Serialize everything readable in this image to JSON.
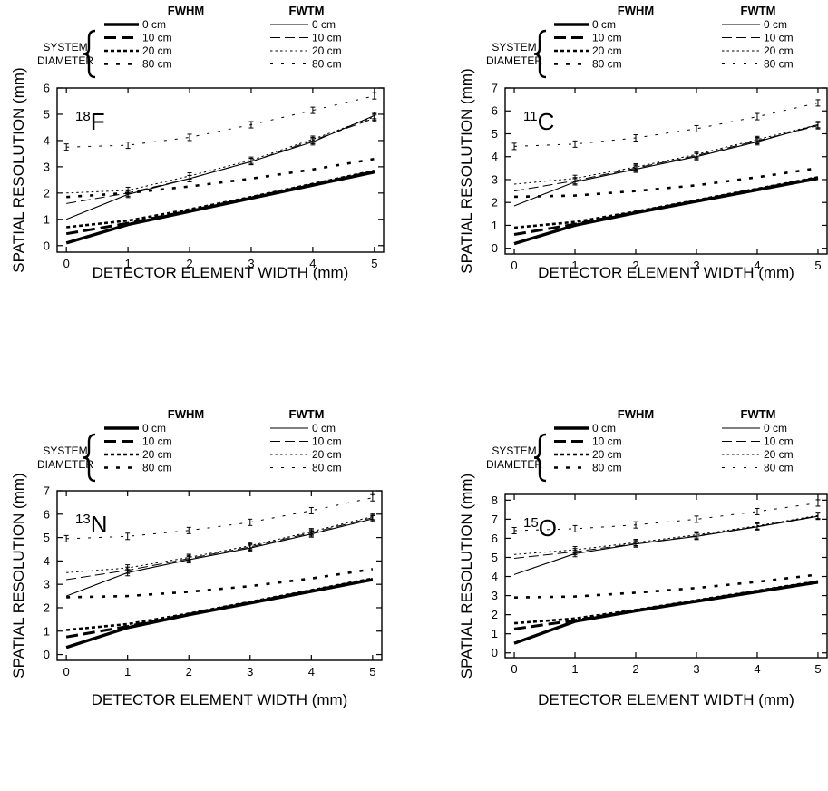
{
  "figure": {
    "legend": {
      "group_label_line1": "SYSTEM",
      "group_label_line2": "DIAMETER",
      "col_fwhm": "FWHM",
      "col_fwtm": "FWTM",
      "diameters": [
        "0 cm",
        "10 cm",
        "20 cm",
        "80 cm"
      ]
    }
  },
  "chart_data": [
    {
      "type": "line",
      "isotope_mass": "18",
      "isotope_symbol": "F",
      "xlabel": "DETECTOR ELEMENT WIDTH (mm)",
      "ylabel": "SPATIAL RESOLUTION (mm)",
      "x": [
        0,
        1,
        2,
        3,
        4,
        5
      ],
      "xticks": [
        0,
        1,
        2,
        3,
        4,
        5
      ],
      "yticks": [
        0,
        1,
        2,
        3,
        4,
        5,
        6
      ],
      "xlim": [
        -0.15,
        5.15
      ],
      "ylim": [
        -0.25,
        6.0
      ],
      "series": [
        {
          "name": "FWHM 0 cm",
          "values": [
            0.1,
            0.8,
            1.3,
            1.8,
            2.3,
            2.8
          ]
        },
        {
          "name": "FWHM 10 cm",
          "values": [
            0.45,
            0.85,
            1.32,
            1.82,
            2.32,
            2.82
          ]
        },
        {
          "name": "FWHM 20 cm",
          "values": [
            0.7,
            0.95,
            1.38,
            1.85,
            2.35,
            2.85
          ]
        },
        {
          "name": "FWHM 80 cm",
          "values": [
            1.85,
            2.0,
            2.25,
            2.55,
            2.9,
            3.3
          ]
        },
        {
          "name": "FWTM 0 cm",
          "values": [
            1.0,
            1.95,
            2.55,
            3.2,
            3.95,
            4.95
          ]
        },
        {
          "name": "FWTM 10 cm",
          "values": [
            1.6,
            2.0,
            2.55,
            3.2,
            4.0,
            4.85
          ]
        },
        {
          "name": "FWTM 20 cm",
          "values": [
            2.0,
            2.1,
            2.65,
            3.25,
            4.05,
            4.9
          ]
        },
        {
          "name": "FWTM 80 cm",
          "values": [
            3.75,
            3.82,
            4.12,
            4.6,
            5.15,
            5.7
          ]
        }
      ]
    },
    {
      "type": "line",
      "isotope_mass": "11",
      "isotope_symbol": "C",
      "xlabel": "DETECTOR ELEMENT WIDTH (mm)",
      "ylabel": "SPATIAL RESOLUTION (mm)",
      "x": [
        0,
        1,
        2,
        3,
        4,
        5
      ],
      "xticks": [
        0,
        1,
        2,
        3,
        4,
        5
      ],
      "yticks": [
        0,
        1,
        2,
        3,
        4,
        5,
        6,
        7
      ],
      "xlim": [
        -0.15,
        5.15
      ],
      "ylim": [
        -0.25,
        7.0
      ],
      "series": [
        {
          "name": "FWHM 0 cm",
          "values": [
            0.2,
            1.0,
            1.55,
            2.05,
            2.55,
            3.05
          ]
        },
        {
          "name": "FWHM 10 cm",
          "values": [
            0.6,
            1.05,
            1.57,
            2.07,
            2.57,
            3.07
          ]
        },
        {
          "name": "FWHM 20 cm",
          "values": [
            0.9,
            1.15,
            1.6,
            2.1,
            2.6,
            3.1
          ]
        },
        {
          "name": "FWHM 80 cm",
          "values": [
            2.25,
            2.3,
            2.5,
            2.75,
            3.1,
            3.5
          ]
        },
        {
          "name": "FWTM 0 cm",
          "values": [
            1.85,
            2.9,
            3.45,
            4.0,
            4.65,
            5.4
          ]
        },
        {
          "name": "FWTM 10 cm",
          "values": [
            2.5,
            2.95,
            3.5,
            4.05,
            4.7,
            5.35
          ]
        },
        {
          "name": "FWTM 20 cm",
          "values": [
            2.8,
            3.05,
            3.55,
            4.1,
            4.75,
            5.4
          ]
        },
        {
          "name": "FWTM 80 cm",
          "values": [
            4.45,
            4.55,
            4.82,
            5.22,
            5.75,
            6.35
          ]
        }
      ]
    },
    {
      "type": "line",
      "isotope_mass": "13",
      "isotope_symbol": "N",
      "xlabel": "DETECTOR ELEMENT WIDTH (mm)",
      "ylabel": "SPATIAL RESOLUTION (mm)",
      "x": [
        0,
        1,
        2,
        3,
        4,
        5
      ],
      "xticks": [
        0,
        1,
        2,
        3,
        4,
        5
      ],
      "yticks": [
        0,
        1,
        2,
        3,
        4,
        5,
        6,
        7
      ],
      "xlim": [
        -0.15,
        5.15
      ],
      "ylim": [
        -0.25,
        7.0
      ],
      "series": [
        {
          "name": "FWHM 0 cm",
          "values": [
            0.3,
            1.15,
            1.7,
            2.2,
            2.7,
            3.2
          ]
        },
        {
          "name": "FWHM 10 cm",
          "values": [
            0.75,
            1.2,
            1.72,
            2.22,
            2.72,
            3.22
          ]
        },
        {
          "name": "FWHM 20 cm",
          "values": [
            1.05,
            1.3,
            1.75,
            2.25,
            2.75,
            3.25
          ]
        },
        {
          "name": "FWHM 80 cm",
          "values": [
            2.45,
            2.5,
            2.68,
            2.92,
            3.25,
            3.65
          ]
        },
        {
          "name": "FWTM 0 cm",
          "values": [
            2.5,
            3.5,
            4.05,
            4.55,
            5.15,
            5.8
          ]
        },
        {
          "name": "FWTM 10 cm",
          "values": [
            3.2,
            3.6,
            4.1,
            4.6,
            5.2,
            5.85
          ]
        },
        {
          "name": "FWTM 20 cm",
          "values": [
            3.5,
            3.7,
            4.15,
            4.65,
            5.25,
            5.9
          ]
        },
        {
          "name": "FWTM 80 cm",
          "values": [
            4.95,
            5.05,
            5.3,
            5.65,
            6.15,
            6.7
          ]
        }
      ]
    },
    {
      "type": "line",
      "isotope_mass": "15",
      "isotope_symbol": "O",
      "xlabel": "DETECTOR ELEMENT WIDTH (mm)",
      "ylabel": "SPATIAL RESOLUTION (mm)",
      "x": [
        0,
        1,
        2,
        3,
        4,
        5
      ],
      "xticks": [
        0,
        1,
        2,
        3,
        4,
        5
      ],
      "yticks": [
        0,
        1,
        2,
        3,
        4,
        5,
        6,
        7,
        8
      ],
      "xlim": [
        -0.15,
        5.15
      ],
      "ylim": [
        -0.25,
        8.3
      ],
      "series": [
        {
          "name": "FWHM 0 cm",
          "values": [
            0.5,
            1.65,
            2.2,
            2.7,
            3.2,
            3.7
          ]
        },
        {
          "name": "FWHM 10 cm",
          "values": [
            1.25,
            1.7,
            2.22,
            2.72,
            3.22,
            3.72
          ]
        },
        {
          "name": "FWHM 20 cm",
          "values": [
            1.55,
            1.8,
            2.25,
            2.75,
            3.25,
            3.75
          ]
        },
        {
          "name": "FWHM 80 cm",
          "values": [
            2.9,
            2.95,
            3.15,
            3.4,
            3.72,
            4.1
          ]
        },
        {
          "name": "FWTM 0 cm",
          "values": [
            4.1,
            5.2,
            5.7,
            6.1,
            6.6,
            7.15
          ]
        },
        {
          "name": "FWTM 10 cm",
          "values": [
            4.95,
            5.3,
            5.72,
            6.12,
            6.62,
            7.17
          ]
        },
        {
          "name": "FWTM 20 cm",
          "values": [
            5.15,
            5.4,
            5.78,
            6.18,
            6.65,
            7.2
          ]
        },
        {
          "name": "FWTM 80 cm",
          "values": [
            6.4,
            6.5,
            6.7,
            7.0,
            7.4,
            7.85
          ]
        }
      ]
    }
  ]
}
